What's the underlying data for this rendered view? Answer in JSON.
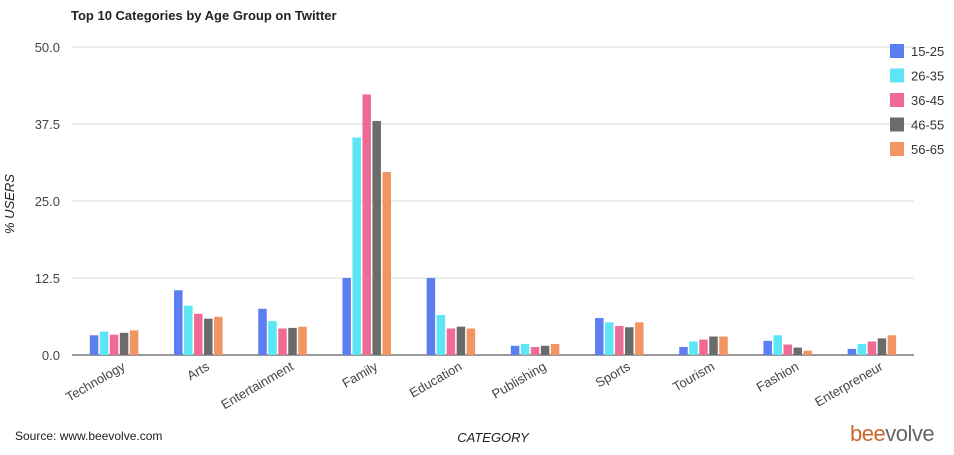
{
  "chart_data": {
    "type": "bar",
    "title": "Top 10 Categories by Age Group on Twitter",
    "xlabel": "CATEGORY",
    "ylabel": "% USERS",
    "ylim": [
      0,
      50
    ],
    "yticks": [
      "0.0",
      "12.5",
      "25.0",
      "37.5",
      "50.0"
    ],
    "grid": true,
    "legend_position": "right",
    "categories": [
      "Technology",
      "Arts",
      "Entertainment",
      "Family",
      "Education",
      "Publishing",
      "Sports",
      "Tourism",
      "Fashion",
      "Enterpreneur"
    ],
    "series": [
      {
        "name": "15-25",
        "color": "#5b7ef0",
        "values": [
          3.2,
          10.5,
          7.5,
          12.5,
          12.5,
          1.5,
          6.0,
          1.3,
          2.3,
          1.0
        ]
      },
      {
        "name": "26-35",
        "color": "#5ce5f5",
        "values": [
          3.8,
          8.0,
          5.5,
          35.3,
          6.5,
          1.8,
          5.3,
          2.2,
          3.2,
          1.8
        ]
      },
      {
        "name": "36-45",
        "color": "#ef6b96",
        "values": [
          3.3,
          6.7,
          4.3,
          42.3,
          4.3,
          1.3,
          4.7,
          2.5,
          1.7,
          2.2
        ]
      },
      {
        "name": "46-55",
        "color": "#6b6b6b",
        "values": [
          3.6,
          5.9,
          4.4,
          38.0,
          4.6,
          1.5,
          4.5,
          3.0,
          1.2,
          2.7
        ]
      },
      {
        "name": "56-65",
        "color": "#f39562",
        "values": [
          4.0,
          6.2,
          4.6,
          29.7,
          4.3,
          1.8,
          5.3,
          3.0,
          0.7,
          3.2
        ]
      }
    ]
  },
  "source_text": "Source: www.beevolve.com",
  "logo": {
    "part1": "bee",
    "part2": "volve"
  }
}
